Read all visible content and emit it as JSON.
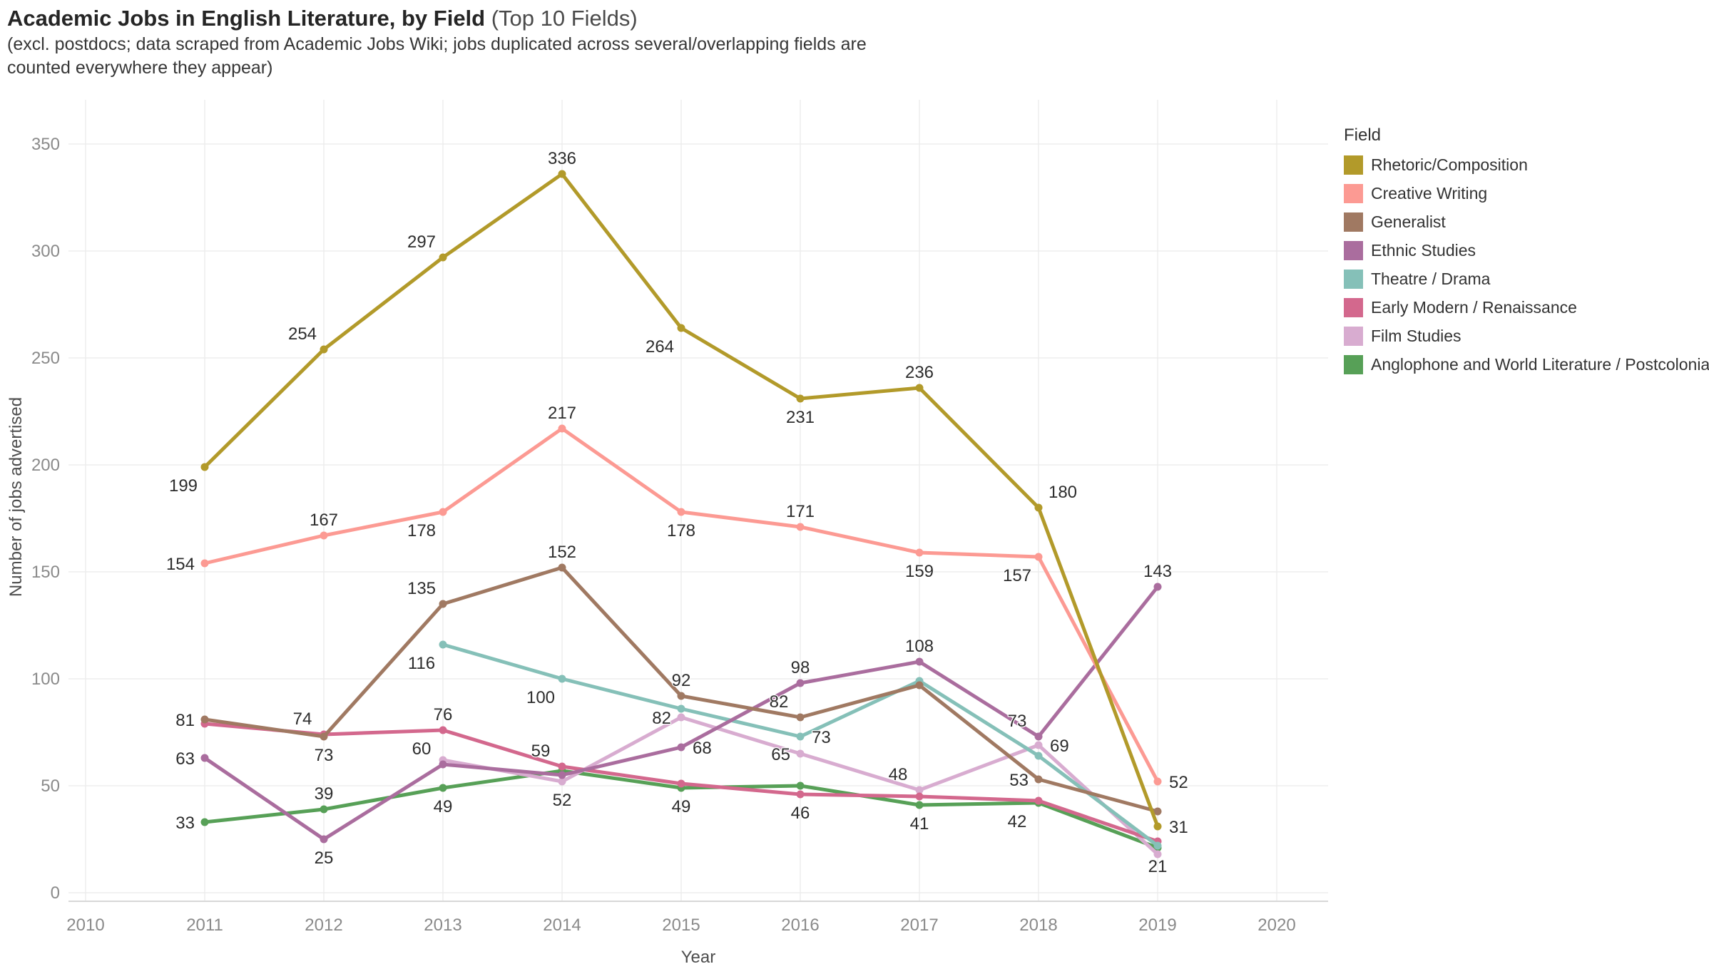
{
  "title": {
    "main": "Academic Jobs in English Literature, by Field",
    "suffix": " (Top 10 Fields)"
  },
  "subtitle": {
    "line1": "(excl. postdocs; data scraped from Academic Jobs Wiki; jobs duplicated across several/overlapping fields are",
    "line2": "counted everywhere they appear)"
  },
  "legend": {
    "title": "Field",
    "position": "right"
  },
  "chart_data": {
    "type": "line",
    "title": "Academic Jobs in English Literature, by Field (Top 10 Fields)",
    "xlabel": "Year",
    "ylabel": "Number of jobs advertised",
    "x_ticks": [
      2010,
      2011,
      2012,
      2013,
      2014,
      2015,
      2016,
      2017,
      2018,
      2019,
      2020
    ],
    "y_ticks": [
      0,
      50,
      100,
      150,
      200,
      250,
      300,
      350
    ],
    "xlim": [
      2009.85,
      2020.45
    ],
    "ylim": [
      0,
      371
    ],
    "grid": true,
    "legend_position": "right",
    "label_color": "#2d2d2d",
    "tick_color": "#8a8a8a",
    "grid_color": "#ededed",
    "series": [
      {
        "name": "Rhetoric/Composition",
        "color": "#b29a2a",
        "points": [
          {
            "x": 2011,
            "y": 199,
            "label": "199",
            "pos": "below-left"
          },
          {
            "x": 2012,
            "y": 254,
            "label": "254",
            "pos": "above-left"
          },
          {
            "x": 2013,
            "y": 297,
            "label": "297",
            "pos": "above-left"
          },
          {
            "x": 2014,
            "y": 336,
            "label": "336",
            "pos": "above"
          },
          {
            "x": 2015,
            "y": 264,
            "label": "264",
            "pos": "below-left"
          },
          {
            "x": 2016,
            "y": 231,
            "label": "231",
            "pos": "below"
          },
          {
            "x": 2017,
            "y": 236,
            "label": "236",
            "pos": "above"
          },
          {
            "x": 2018,
            "y": 180,
            "label": "180",
            "pos": "above-right"
          },
          {
            "x": 2019,
            "y": 31,
            "label": "31",
            "pos": "right"
          }
        ]
      },
      {
        "name": "Creative Writing",
        "color": "#fc9a93",
        "points": [
          {
            "x": 2011,
            "y": 154,
            "label": "154",
            "pos": "left"
          },
          {
            "x": 2012,
            "y": 167,
            "label": "167",
            "pos": "above"
          },
          {
            "x": 2013,
            "y": 178,
            "label": "178",
            "pos": "below-left"
          },
          {
            "x": 2014,
            "y": 217,
            "label": "217",
            "pos": "above"
          },
          {
            "x": 2015,
            "y": 178,
            "label": "178",
            "pos": "below"
          },
          {
            "x": 2016,
            "y": 171,
            "label": "171",
            "pos": "above"
          },
          {
            "x": 2017,
            "y": 159,
            "label": "159",
            "pos": "below"
          },
          {
            "x": 2018,
            "y": 157,
            "label": "157",
            "pos": "below-left"
          },
          {
            "x": 2019,
            "y": 52,
            "label": "52",
            "pos": "right"
          }
        ]
      },
      {
        "name": "Generalist",
        "color": "#a07962",
        "points": [
          {
            "x": 2011,
            "y": 81,
            "label": "81",
            "pos": "left"
          },
          {
            "x": 2012,
            "y": 73,
            "label": "73",
            "pos": "below"
          },
          {
            "x": 2013,
            "y": 135,
            "label": "135",
            "pos": "above-left"
          },
          {
            "x": 2014,
            "y": 152,
            "label": "152",
            "pos": "above"
          },
          {
            "x": 2015,
            "y": 92,
            "label": "92",
            "pos": "above"
          },
          {
            "x": 2016,
            "y": 82,
            "label": "82",
            "pos": "above-left"
          },
          {
            "x": 2017,
            "y": 97,
            "label": null,
            "pos": null,
            "approx": true
          },
          {
            "x": 2018,
            "y": 53,
            "label": "53",
            "pos": "left"
          },
          {
            "x": 2019,
            "y": 38,
            "label": null,
            "pos": null,
            "approx": true
          }
        ]
      },
      {
        "name": "Ethnic Studies",
        "color": "#aa6d9e",
        "points": [
          {
            "x": 2011,
            "y": 63,
            "label": "63",
            "pos": "left"
          },
          {
            "x": 2012,
            "y": 25,
            "label": "25",
            "pos": "below"
          },
          {
            "x": 2013,
            "y": 60,
            "label": "60",
            "pos": "above-left"
          },
          {
            "x": 2014,
            "y": 55,
            "label": null,
            "pos": null,
            "approx": true
          },
          {
            "x": 2015,
            "y": 68,
            "label": "68",
            "pos": "right"
          },
          {
            "x": 2016,
            "y": 98,
            "label": "98",
            "pos": "above"
          },
          {
            "x": 2017,
            "y": 108,
            "label": "108",
            "pos": "above"
          },
          {
            "x": 2018,
            "y": 73,
            "label": "73",
            "pos": "above-left"
          },
          {
            "x": 2019,
            "y": 143,
            "label": "143",
            "pos": "above"
          }
        ]
      },
      {
        "name": "Theatre / Drama",
        "color": "#85c0b8",
        "points": [
          {
            "x": 2013,
            "y": 116,
            "label": "116",
            "pos": "below-left"
          },
          {
            "x": 2014,
            "y": 100,
            "label": "100",
            "pos": "below-left"
          },
          {
            "x": 2015,
            "y": 86,
            "label": null,
            "pos": null,
            "approx": true
          },
          {
            "x": 2016,
            "y": 73,
            "label": "73",
            "pos": "right"
          },
          {
            "x": 2017,
            "y": 99,
            "label": null,
            "pos": null,
            "approx": true
          },
          {
            "x": 2018,
            "y": 64,
            "label": null,
            "pos": null,
            "approx": true
          },
          {
            "x": 2019,
            "y": 22,
            "label": null,
            "pos": null,
            "approx": true
          }
        ]
      },
      {
        "name": "Early Modern / Renaissance",
        "color": "#d3688d",
        "points": [
          {
            "x": 2011,
            "y": 79,
            "label": null,
            "pos": null,
            "approx": true
          },
          {
            "x": 2012,
            "y": 74,
            "label": "74",
            "pos": "above-left"
          },
          {
            "x": 2013,
            "y": 76,
            "label": "76",
            "pos": "above"
          },
          {
            "x": 2014,
            "y": 59,
            "label": "59",
            "pos": "above-left"
          },
          {
            "x": 2015,
            "y": 51,
            "label": null,
            "pos": null,
            "approx": true
          },
          {
            "x": 2016,
            "y": 46,
            "label": "46",
            "pos": "below"
          },
          {
            "x": 2017,
            "y": 45,
            "label": null,
            "pos": null,
            "approx": true
          },
          {
            "x": 2018,
            "y": 43,
            "label": null,
            "pos": null,
            "approx": true
          },
          {
            "x": 2019,
            "y": 24,
            "label": null,
            "pos": null,
            "approx": true
          }
        ]
      },
      {
        "name": "Film Studies",
        "color": "#d8acd0",
        "points": [
          {
            "x": 2013,
            "y": 62,
            "label": null,
            "pos": null,
            "approx": true
          },
          {
            "x": 2014,
            "y": 52,
            "label": "52",
            "pos": "below"
          },
          {
            "x": 2015,
            "y": 82,
            "label": "82",
            "pos": "left"
          },
          {
            "x": 2016,
            "y": 65,
            "label": "65",
            "pos": "left"
          },
          {
            "x": 2017,
            "y": 48,
            "label": "48",
            "pos": "above-left"
          },
          {
            "x": 2018,
            "y": 69,
            "label": "69",
            "pos": "right"
          },
          {
            "x": 2019,
            "y": 18,
            "label": null,
            "pos": null,
            "approx": true
          }
        ]
      },
      {
        "name": "Anglophone and World Literature / Postcolonial",
        "color": "#57a057",
        "points": [
          {
            "x": 2011,
            "y": 33,
            "label": "33",
            "pos": "left"
          },
          {
            "x": 2012,
            "y": 39,
            "label": "39",
            "pos": "above"
          },
          {
            "x": 2013,
            "y": 49,
            "label": "49",
            "pos": "below"
          },
          {
            "x": 2014,
            "y": 57,
            "label": null,
            "pos": null,
            "approx": true
          },
          {
            "x": 2015,
            "y": 49,
            "label": "49",
            "pos": "below"
          },
          {
            "x": 2016,
            "y": 50,
            "label": null,
            "pos": null,
            "approx": true
          },
          {
            "x": 2017,
            "y": 41,
            "label": "41",
            "pos": "below"
          },
          {
            "x": 2018,
            "y": 42,
            "label": "42",
            "pos": "below-left"
          },
          {
            "x": 2019,
            "y": 21,
            "label": "21",
            "pos": "below"
          }
        ]
      }
    ]
  }
}
